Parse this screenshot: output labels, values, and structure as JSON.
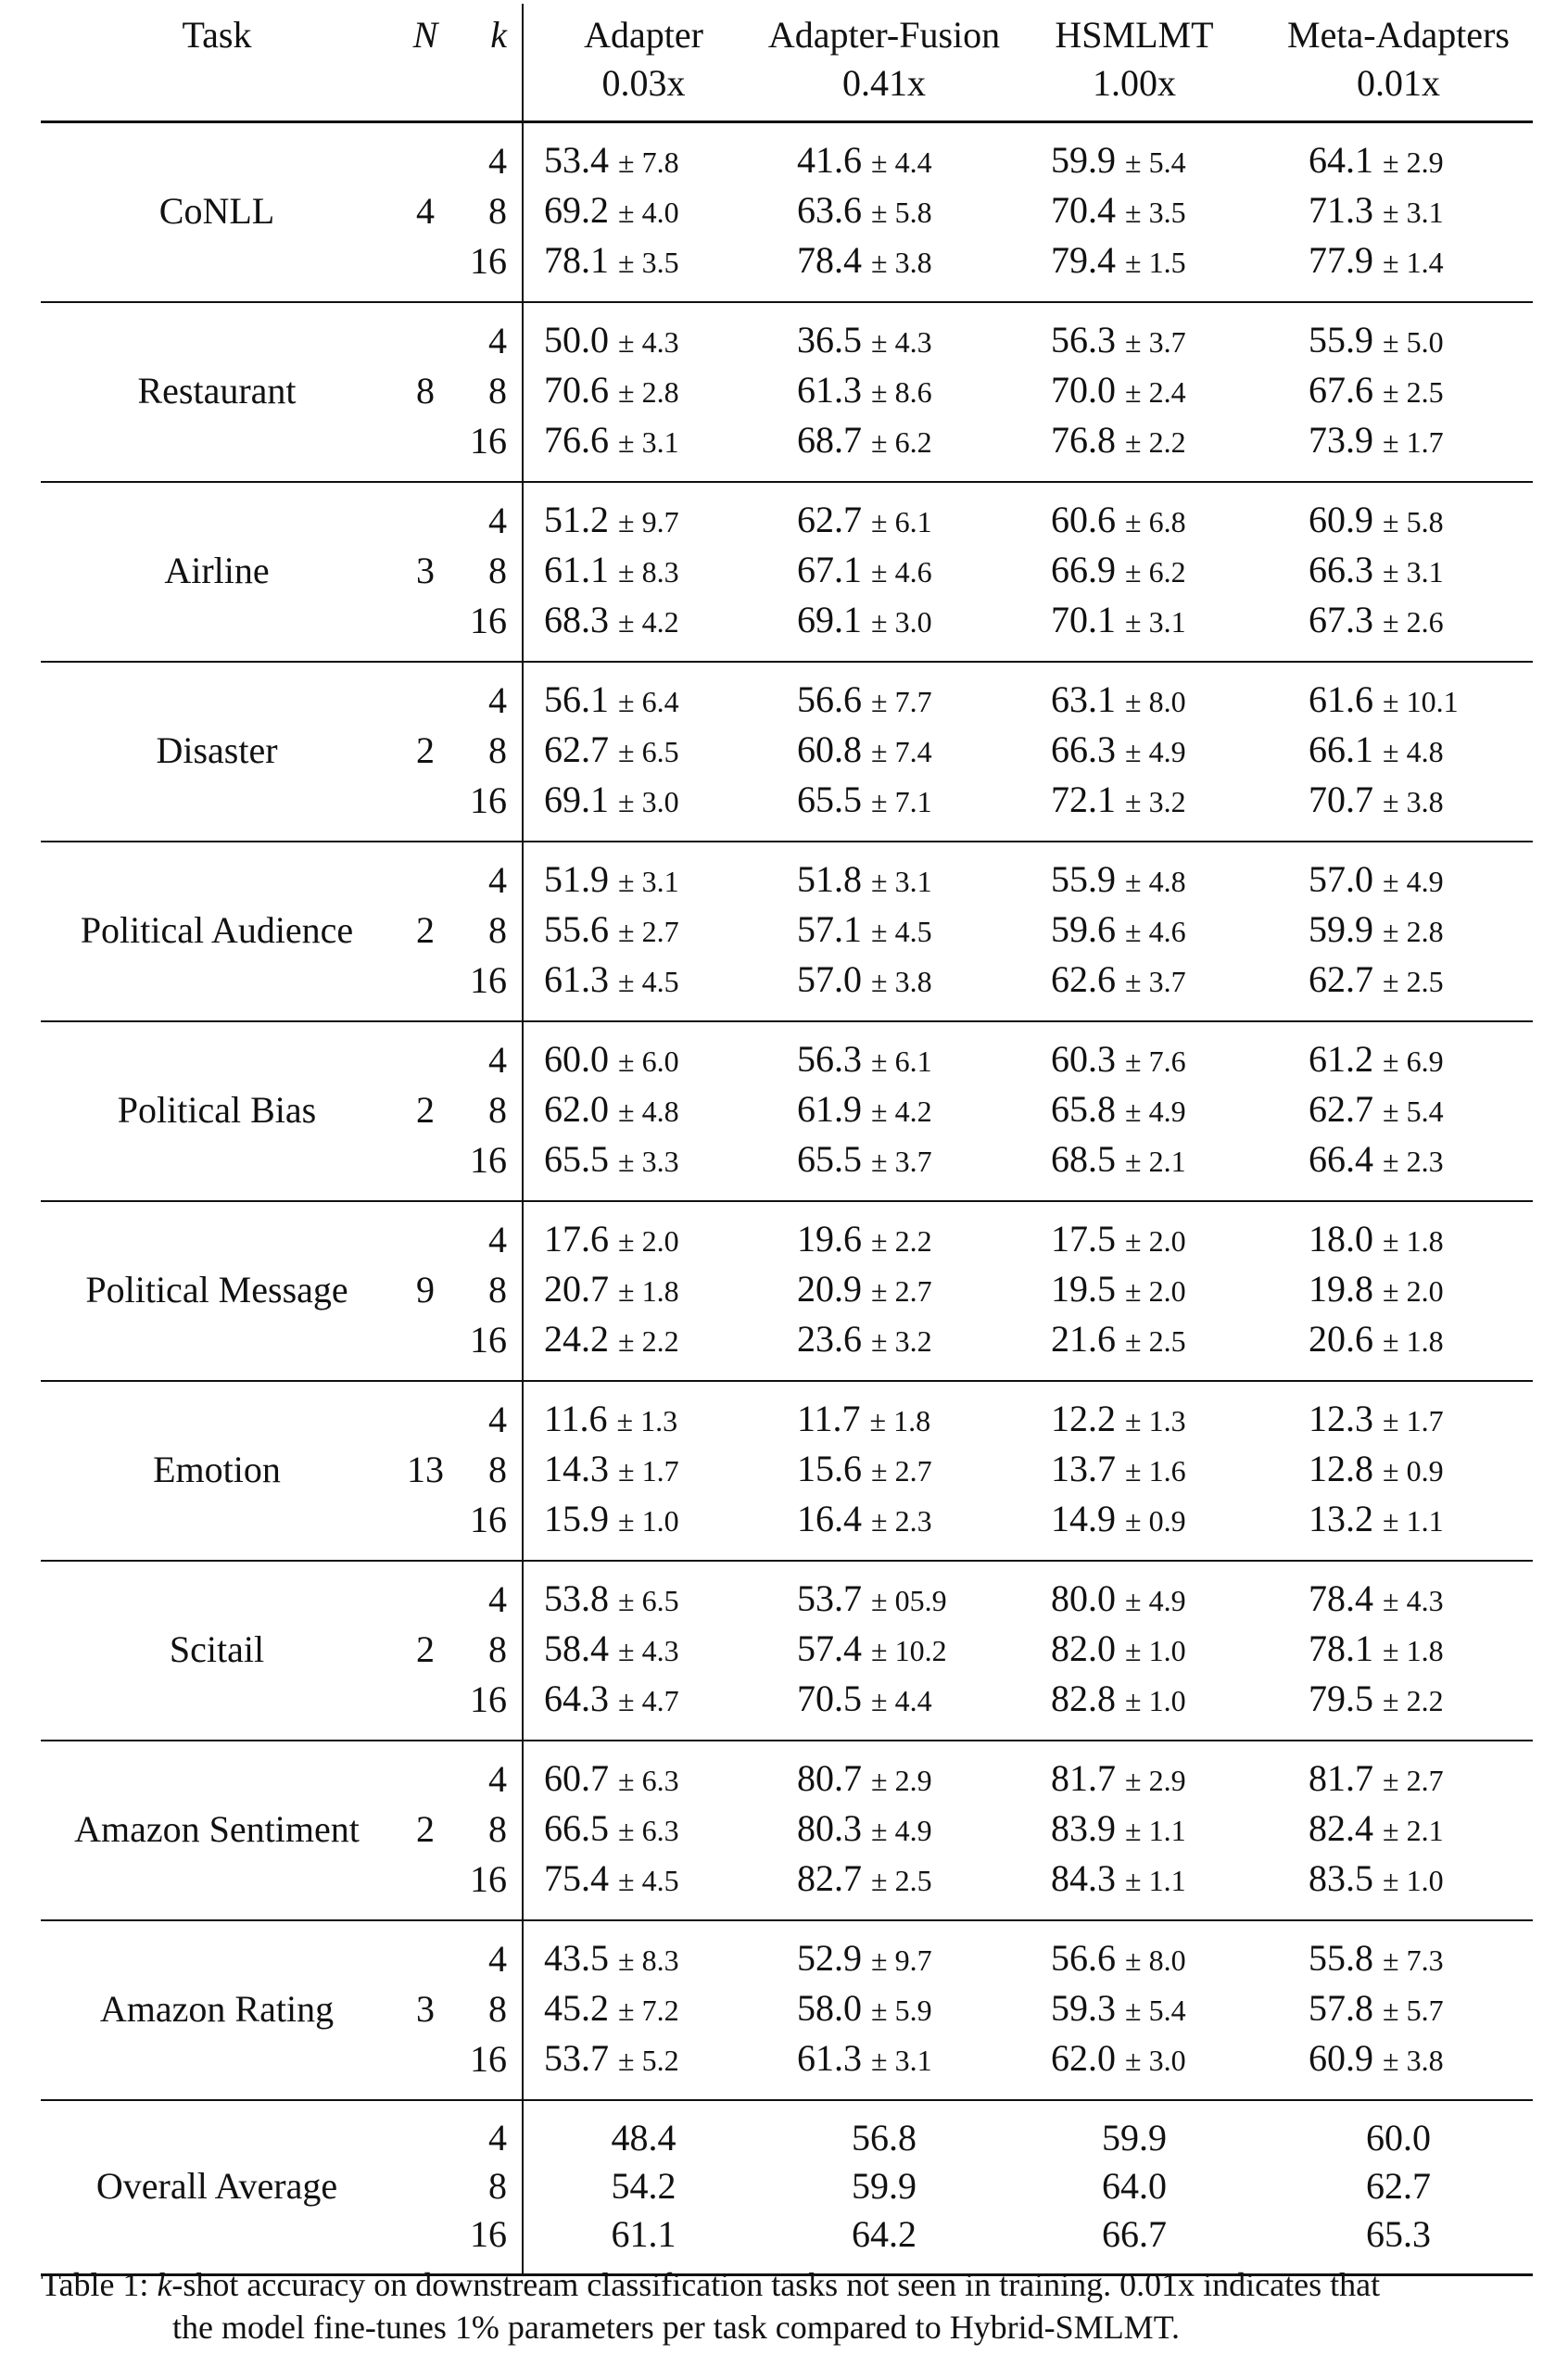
{
  "table": {
    "headers": {
      "task": "Task",
      "n": "N",
      "k": "k",
      "methods": [
        {
          "name": "Adapter",
          "ratio": "0.03x"
        },
        {
          "name": "Adapter-Fusion",
          "ratio": "0.41x"
        },
        {
          "name": "HSMLMT",
          "ratio": "1.00x"
        },
        {
          "name": "Meta-Adapters",
          "ratio": "0.01x"
        }
      ]
    },
    "groups": [
      {
        "task": "CoNLL",
        "n": "4",
        "rows": [
          {
            "k": "4",
            "cells": [
              [
                "53.4",
                "± 7.8"
              ],
              [
                "41.6",
                "± 4.4"
              ],
              [
                "59.9",
                "± 5.4"
              ],
              [
                "64.1",
                "± 2.9"
              ]
            ]
          },
          {
            "k": "8",
            "cells": [
              [
                "69.2",
                "± 4.0"
              ],
              [
                "63.6",
                "± 5.8"
              ],
              [
                "70.4",
                "± 3.5"
              ],
              [
                "71.3",
                "± 3.1"
              ]
            ]
          },
          {
            "k": "16",
            "cells": [
              [
                "78.1",
                "± 3.5"
              ],
              [
                "78.4",
                "± 3.8"
              ],
              [
                "79.4",
                "± 1.5"
              ],
              [
                "77.9",
                "± 1.4"
              ]
            ]
          }
        ]
      },
      {
        "task": "Restaurant",
        "n": "8",
        "rows": [
          {
            "k": "4",
            "cells": [
              [
                "50.0",
                "± 4.3"
              ],
              [
                "36.5",
                "± 4.3"
              ],
              [
                "56.3",
                "± 3.7"
              ],
              [
                "55.9",
                "± 5.0"
              ]
            ]
          },
          {
            "k": "8",
            "cells": [
              [
                "70.6",
                "± 2.8"
              ],
              [
                "61.3",
                "± 8.6"
              ],
              [
                "70.0",
                "± 2.4"
              ],
              [
                "67.6",
                "± 2.5"
              ]
            ]
          },
          {
            "k": "16",
            "cells": [
              [
                "76.6",
                "± 3.1"
              ],
              [
                "68.7",
                "± 6.2"
              ],
              [
                "76.8",
                "± 2.2"
              ],
              [
                "73.9",
                "± 1.7"
              ]
            ]
          }
        ]
      },
      {
        "task": "Airline",
        "n": "3",
        "rows": [
          {
            "k": "4",
            "cells": [
              [
                "51.2",
                "± 9.7"
              ],
              [
                "62.7",
                "± 6.1"
              ],
              [
                "60.6",
                "± 6.8"
              ],
              [
                "60.9",
                "± 5.8"
              ]
            ]
          },
          {
            "k": "8",
            "cells": [
              [
                "61.1",
                "± 8.3"
              ],
              [
                "67.1",
                "± 4.6"
              ],
              [
                "66.9",
                "± 6.2"
              ],
              [
                "66.3",
                "± 3.1"
              ]
            ]
          },
          {
            "k": "16",
            "cells": [
              [
                "68.3",
                "± 4.2"
              ],
              [
                "69.1",
                "± 3.0"
              ],
              [
                "70.1",
                "± 3.1"
              ],
              [
                "67.3",
                "± 2.6"
              ]
            ]
          }
        ]
      },
      {
        "task": "Disaster",
        "n": "2",
        "rows": [
          {
            "k": "4",
            "cells": [
              [
                "56.1",
                "± 6.4"
              ],
              [
                "56.6",
                "± 7.7"
              ],
              [
                "63.1",
                "± 8.0"
              ],
              [
                "61.6",
                "± 10.1"
              ]
            ]
          },
          {
            "k": "8",
            "cells": [
              [
                "62.7",
                "± 6.5"
              ],
              [
                "60.8",
                "± 7.4"
              ],
              [
                "66.3",
                "± 4.9"
              ],
              [
                "66.1",
                "± 4.8"
              ]
            ]
          },
          {
            "k": "16",
            "cells": [
              [
                "69.1",
                "± 3.0"
              ],
              [
                "65.5",
                "± 7.1"
              ],
              [
                "72.1",
                "± 3.2"
              ],
              [
                "70.7",
                "± 3.8"
              ]
            ]
          }
        ]
      },
      {
        "task": "Political Audience",
        "n": "2",
        "rows": [
          {
            "k": "4",
            "cells": [
              [
                "51.9",
                "± 3.1"
              ],
              [
                "51.8",
                "± 3.1"
              ],
              [
                "55.9",
                "± 4.8"
              ],
              [
                "57.0",
                "± 4.9"
              ]
            ]
          },
          {
            "k": "8",
            "cells": [
              [
                "55.6",
                "± 2.7"
              ],
              [
                "57.1",
                "± 4.5"
              ],
              [
                "59.6",
                "± 4.6"
              ],
              [
                "59.9",
                "± 2.8"
              ]
            ]
          },
          {
            "k": "16",
            "cells": [
              [
                "61.3",
                "± 4.5"
              ],
              [
                "57.0",
                "± 3.8"
              ],
              [
                "62.6",
                "± 3.7"
              ],
              [
                "62.7",
                "± 2.5"
              ]
            ]
          }
        ]
      },
      {
        "task": "Political Bias",
        "n": "2",
        "rows": [
          {
            "k": "4",
            "cells": [
              [
                "60.0",
                "± 6.0"
              ],
              [
                "56.3",
                "± 6.1"
              ],
              [
                "60.3",
                "± 7.6"
              ],
              [
                "61.2",
                "± 6.9"
              ]
            ]
          },
          {
            "k": "8",
            "cells": [
              [
                "62.0",
                "± 4.8"
              ],
              [
                "61.9",
                "± 4.2"
              ],
              [
                "65.8",
                "± 4.9"
              ],
              [
                "62.7",
                "± 5.4"
              ]
            ]
          },
          {
            "k": "16",
            "cells": [
              [
                "65.5",
                "± 3.3"
              ],
              [
                "65.5",
                "± 3.7"
              ],
              [
                "68.5",
                "± 2.1"
              ],
              [
                "66.4",
                "± 2.3"
              ]
            ]
          }
        ]
      },
      {
        "task": "Political Message",
        "n": "9",
        "rows": [
          {
            "k": "4",
            "cells": [
              [
                "17.6",
                "± 2.0"
              ],
              [
                "19.6",
                "± 2.2"
              ],
              [
                "17.5",
                "± 2.0"
              ],
              [
                "18.0",
                "± 1.8"
              ]
            ]
          },
          {
            "k": "8",
            "cells": [
              [
                "20.7",
                "± 1.8"
              ],
              [
                "20.9",
                "± 2.7"
              ],
              [
                "19.5",
                "± 2.0"
              ],
              [
                "19.8",
                "± 2.0"
              ]
            ]
          },
          {
            "k": "16",
            "cells": [
              [
                "24.2",
                "± 2.2"
              ],
              [
                "23.6",
                "± 3.2"
              ],
              [
                "21.6",
                "± 2.5"
              ],
              [
                "20.6",
                "± 1.8"
              ]
            ]
          }
        ]
      },
      {
        "task": "Emotion",
        "n": "13",
        "rows": [
          {
            "k": "4",
            "cells": [
              [
                "11.6",
                "± 1.3"
              ],
              [
                "11.7",
                "± 1.8"
              ],
              [
                "12.2",
                "± 1.3"
              ],
              [
                "12.3",
                "± 1.7"
              ]
            ]
          },
          {
            "k": "8",
            "cells": [
              [
                "14.3",
                "± 1.7"
              ],
              [
                "15.6",
                "± 2.7"
              ],
              [
                "13.7",
                "± 1.6"
              ],
              [
                "12.8",
                "± 0.9"
              ]
            ]
          },
          {
            "k": "16",
            "cells": [
              [
                "15.9",
                "± 1.0"
              ],
              [
                "16.4",
                "± 2.3"
              ],
              [
                "14.9",
                "± 0.9"
              ],
              [
                "13.2",
                "± 1.1"
              ]
            ]
          }
        ]
      },
      {
        "task": "Scitail",
        "n": "2",
        "rows": [
          {
            "k": "4",
            "cells": [
              [
                "53.8",
                "± 6.5"
              ],
              [
                "53.7",
                "± 05.9"
              ],
              [
                "80.0",
                "± 4.9"
              ],
              [
                "78.4",
                "± 4.3"
              ]
            ]
          },
          {
            "k": "8",
            "cells": [
              [
                "58.4",
                "± 4.3"
              ],
              [
                "57.4",
                "± 10.2"
              ],
              [
                "82.0",
                "± 1.0"
              ],
              [
                "78.1",
                "± 1.8"
              ]
            ]
          },
          {
            "k": "16",
            "cells": [
              [
                "64.3",
                "± 4.7"
              ],
              [
                "70.5",
                "± 4.4"
              ],
              [
                "82.8",
                "± 1.0"
              ],
              [
                "79.5",
                "± 2.2"
              ]
            ]
          }
        ]
      },
      {
        "task": "Amazon Sentiment",
        "n": "2",
        "rows": [
          {
            "k": "4",
            "cells": [
              [
                "60.7",
                "± 6.3"
              ],
              [
                "80.7",
                "± 2.9"
              ],
              [
                "81.7",
                "± 2.9"
              ],
              [
                "81.7",
                "± 2.7"
              ]
            ]
          },
          {
            "k": "8",
            "cells": [
              [
                "66.5",
                "± 6.3"
              ],
              [
                "80.3",
                "± 4.9"
              ],
              [
                "83.9",
                "± 1.1"
              ],
              [
                "82.4",
                "± 2.1"
              ]
            ]
          },
          {
            "k": "16",
            "cells": [
              [
                "75.4",
                "± 4.5"
              ],
              [
                "82.7",
                "± 2.5"
              ],
              [
                "84.3",
                "± 1.1"
              ],
              [
                "83.5",
                "± 1.0"
              ]
            ]
          }
        ]
      },
      {
        "task": "Amazon Rating",
        "n": "3",
        "rows": [
          {
            "k": "4",
            "cells": [
              [
                "43.5",
                "± 8.3"
              ],
              [
                "52.9",
                "± 9.7"
              ],
              [
                "56.6",
                "± 8.0"
              ],
              [
                "55.8",
                "± 7.3"
              ]
            ]
          },
          {
            "k": "8",
            "cells": [
              [
                "45.2",
                "± 7.2"
              ],
              [
                "58.0",
                "± 5.9"
              ],
              [
                "59.3",
                "± 5.4"
              ],
              [
                "57.8",
                "± 5.7"
              ]
            ]
          },
          {
            "k": "16",
            "cells": [
              [
                "53.7",
                "± 5.2"
              ],
              [
                "61.3",
                "± 3.1"
              ],
              [
                "62.0",
                "± 3.0"
              ],
              [
                "60.9",
                "± 3.8"
              ]
            ]
          }
        ]
      },
      {
        "task": "Overall Average",
        "n": "",
        "rows": [
          {
            "k": "4",
            "cells": [
              [
                "48.4",
                ""
              ],
              [
                "56.8",
                ""
              ],
              [
                "59.9",
                ""
              ],
              [
                "60.0",
                ""
              ]
            ]
          },
          {
            "k": "8",
            "cells": [
              [
                "54.2",
                ""
              ],
              [
                "59.9",
                ""
              ],
              [
                "64.0",
                ""
              ],
              [
                "62.7",
                ""
              ]
            ]
          },
          {
            "k": "16",
            "cells": [
              [
                "61.1",
                ""
              ],
              [
                "64.2",
                ""
              ],
              [
                "66.7",
                ""
              ],
              [
                "65.3",
                ""
              ]
            ]
          }
        ]
      }
    ]
  },
  "caption": {
    "label": "Table 1:",
    "k_symbol": "k",
    "line1_rest": "-shot accuracy on downstream classification tasks not seen in training. 0.01x indicates that",
    "line2": "the model fine-tunes 1% parameters per task compared to Hybrid-SMLMT."
  }
}
